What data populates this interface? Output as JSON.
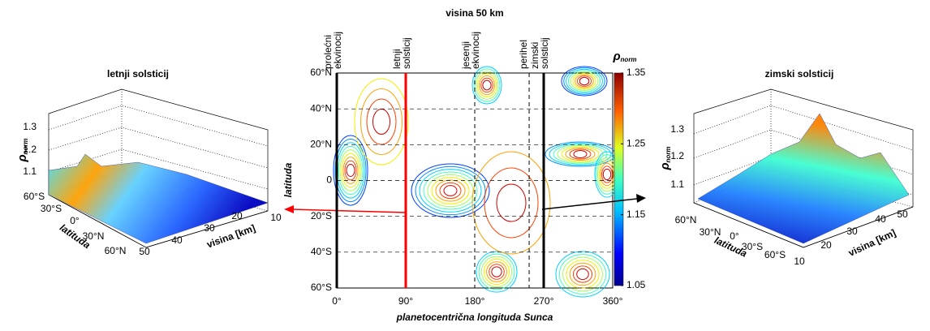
{
  "chart_data": [
    {
      "type": "surface3d",
      "title": "letnji solsticij",
      "zlabel": {
        "symbol": "ρ",
        "subscript": "norm"
      },
      "zticks": [
        1.1,
        1.2,
        1.3
      ],
      "lat_label": "latituda",
      "lat_ticks": [
        "60°S",
        "30°S",
        "0°",
        "30°N",
        "60°N"
      ],
      "height_label": "visina [km]",
      "height_ticks": [
        50,
        40,
        30,
        20,
        10
      ]
    },
    {
      "type": "contour",
      "title": "visina 50 km",
      "xlabel": "planetocentrična longituda Sunca",
      "ylabel": "latituda",
      "xlim": [
        0,
        360
      ],
      "xticks": [
        {
          "value": 0,
          "label": "0°"
        },
        {
          "value": 90,
          "label": "90°"
        },
        {
          "value": 180,
          "label": "180°"
        },
        {
          "value": 270,
          "label": "270°"
        },
        {
          "value": 360,
          "label": "360°"
        }
      ],
      "ylim": [
        -60,
        60
      ],
      "yticks": [
        {
          "value": -60,
          "label": "60°S"
        },
        {
          "value": -40,
          "label": "40°S"
        },
        {
          "value": -20,
          "label": "20°S"
        },
        {
          "value": 0,
          "label": "0"
        },
        {
          "value": 20,
          "label": "20°N"
        },
        {
          "value": 40,
          "label": "40°N"
        },
        {
          "value": 60,
          "label": "60°N"
        }
      ],
      "events": [
        {
          "label": [
            "prolećni",
            "ekvinocij"
          ],
          "x": 0,
          "color": "#000000",
          "dashed": false
        },
        {
          "label": [
            "letnji",
            "solsticij"
          ],
          "x": 90,
          "color": "#ff0000",
          "dashed": false
        },
        {
          "label": [
            "jesenji",
            "ekvinocij"
          ],
          "x": 180,
          "color": "#000000",
          "dashed": true
        },
        {
          "label": [
            "perihel"
          ],
          "x": 251,
          "color": "#000000",
          "dashed": true
        },
        {
          "label": [
            "zimski",
            "solsticij"
          ],
          "x": 270,
          "color": "#000000",
          "dashed": false
        }
      ],
      "colorbar": {
        "label": {
          "symbol": "ρ",
          "subscript": "norm"
        },
        "lim": [
          1.05,
          1.35
        ],
        "ticks": [
          1.05,
          1.15,
          1.25,
          1.35
        ]
      }
    },
    {
      "type": "surface3d",
      "title": "zimski solsticij",
      "zlabel": {
        "symbol": "ρ",
        "subscript": "norm"
      },
      "zticks": [
        1.1,
        1.2,
        1.3
      ],
      "lat_label": "latituda",
      "lat_ticks": [
        "60°N",
        "30°N",
        "0°",
        "30°S",
        "60°S"
      ],
      "height_label": "visina [km]",
      "height_ticks": [
        10,
        20,
        30,
        40,
        50
      ]
    }
  ]
}
